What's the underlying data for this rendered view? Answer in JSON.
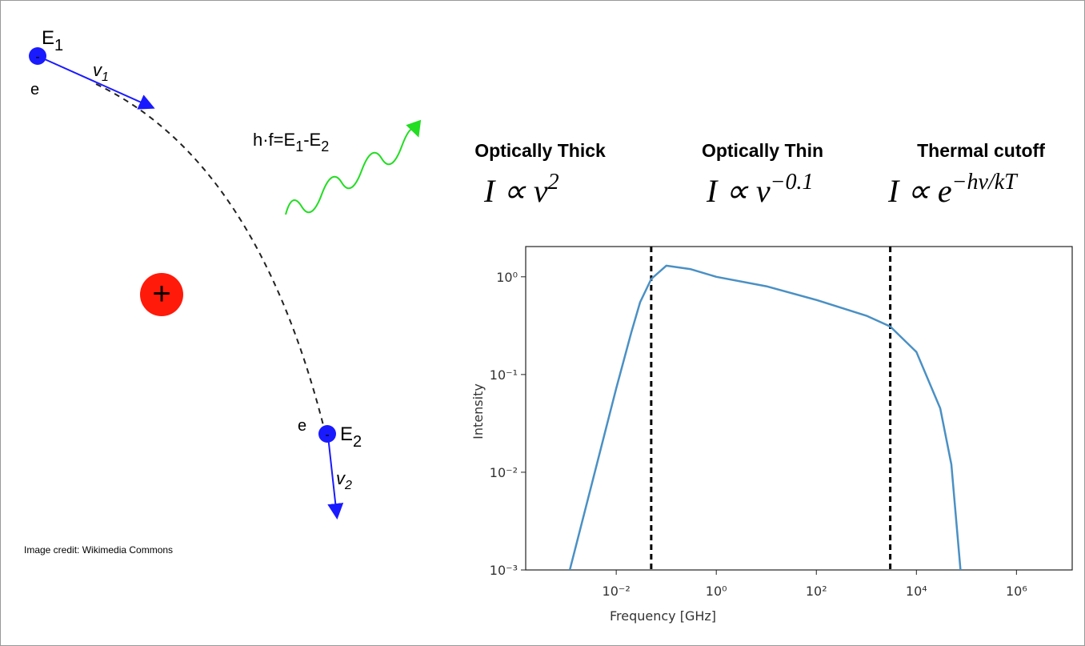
{
  "diagram": {
    "electron1": {
      "label": "E",
      "sub": "1",
      "sign": "-",
      "charge": "e"
    },
    "velocity1": {
      "label": "v",
      "sub": "1"
    },
    "photon": [
      {
        "text": "h·f=E"
      },
      {
        "sub": "1"
      },
      {
        "text": "-E"
      },
      {
        "sub": "2"
      }
    ],
    "nucleus_sign": "+",
    "electron2": {
      "label": "E",
      "sub": "2",
      "sign": "-",
      "charge": "e"
    },
    "velocity2": {
      "label": "v",
      "sub": "2"
    },
    "credit": "Image credit: Wikimedia Commons"
  },
  "regimes": [
    {
      "title": "Optically Thick",
      "formula": "I ∝ ν",
      "exponent": "2"
    },
    {
      "title": "Optically Thin",
      "formula": "I ∝ ν",
      "exponent": "−0.1"
    },
    {
      "title": "Thermal cutoff",
      "formula": "I ∝ e",
      "exponent": "−hν/kT"
    }
  ],
  "chart_data": {
    "type": "line",
    "xlabel": "Frequency [GHz]",
    "ylabel": "Intensity",
    "x": [
      0.00118,
      0.003,
      0.01,
      0.02,
      0.03,
      0.05,
      0.1,
      0.3,
      1,
      10,
      100,
      1000,
      3000,
      10000,
      30000,
      50000,
      76000
    ],
    "values": [
      0.001,
      0.0065,
      0.072,
      0.27,
      0.55,
      0.95,
      1.3,
      1.2,
      1.0,
      0.8,
      0.58,
      0.4,
      0.31,
      0.17,
      0.045,
      0.012,
      0.001
    ],
    "color": "#4a90c4",
    "xscale": "log",
    "yscale": "log",
    "xlim": [
      0.000155,
      13000000
    ],
    "ylim": [
      0.001,
      2.04
    ],
    "xticks": [
      {
        "value": 0.01,
        "label": "10⁻²"
      },
      {
        "value": 1,
        "label": "10⁰"
      },
      {
        "value": 100,
        "label": "10²"
      },
      {
        "value": 10000,
        "label": "10⁴"
      },
      {
        "value": 1000000,
        "label": "10⁶"
      }
    ],
    "yticks": [
      {
        "value": 0.001,
        "label": "10⁻³"
      },
      {
        "value": 0.01,
        "label": "10⁻²"
      },
      {
        "value": 0.1,
        "label": "10⁻¹"
      },
      {
        "value": 1,
        "label": "10⁰"
      }
    ],
    "vlines": [
      0.05,
      3000
    ]
  }
}
